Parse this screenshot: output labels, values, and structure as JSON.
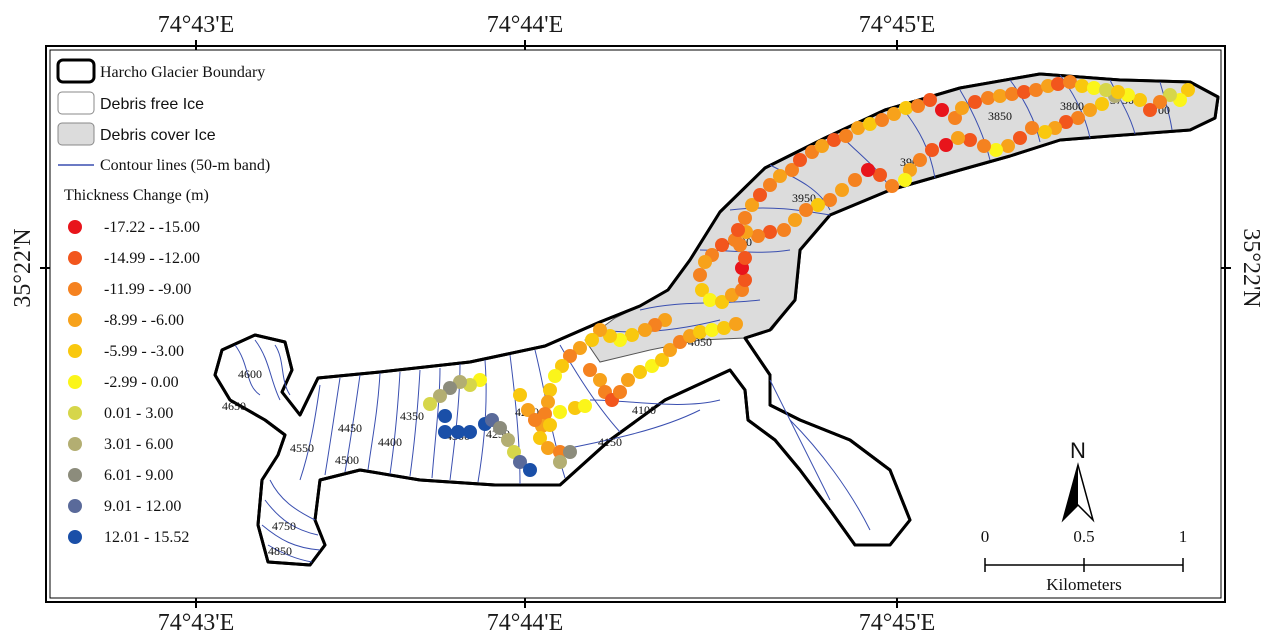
{
  "map": {
    "coords": {
      "top": [
        "74°43'E",
        "74°44'E",
        "74°45'E"
      ],
      "bottom": [
        "74°43'E",
        "74°44'E",
        "74°45'E"
      ],
      "left": "35°22'N",
      "right": "35°22'N"
    },
    "legend": {
      "boundary": "Harcho Glacier Boundary",
      "debris_free": "Debris free Ice",
      "debris_cover": "Debris cover Ice",
      "contours": "Contour lines (50-m band)",
      "thickness_title": "Thickness Change (m)",
      "classes": [
        {
          "label": "-17.22 - -15.00",
          "color": "#e8141b"
        },
        {
          "label": "-14.99 - -12.00",
          "color": "#f2561d"
        },
        {
          "label": "-11.99 - -9.00",
          "color": "#f58220"
        },
        {
          "label": "-8.99 - -6.00",
          "color": "#f7a21b"
        },
        {
          "label": "-5.99 - -3.00",
          "color": "#f9c80e"
        },
        {
          "label": "-2.99 - 0.00",
          "color": "#fbf51a"
        },
        {
          "label": "0.01 - 3.00",
          "color": "#d6d64a"
        },
        {
          "label": "3.01 - 6.00",
          "color": "#b3ae72"
        },
        {
          "label": "6.01 - 9.00",
          "color": "#8c8c7c"
        },
        {
          "label": "9.01 - 12.00",
          "color": "#5a6a9a"
        },
        {
          "label": "12.01 - 15.52",
          "color": "#1a4fa8"
        }
      ]
    },
    "contour_labels": [
      "4600",
      "4650",
      "4550",
      "4450",
      "4500",
      "4400",
      "4350",
      "4300",
      "4250",
      "4200",
      "4100",
      "4150",
      "4050",
      "4000",
      "3950",
      "3900",
      "3850",
      "3800",
      "3750",
      "3700",
      "4750",
      "4850"
    ],
    "scale": {
      "ticks": [
        "0",
        "0.5",
        "1"
      ],
      "unit": "Kilometers"
    },
    "north_label": "N",
    "colors": {
      "debris_free_fill": "#ffffff",
      "debris_cover_fill": "#dcdcdc",
      "contour": "#3a4fb0",
      "boundary": "#000000"
    }
  }
}
